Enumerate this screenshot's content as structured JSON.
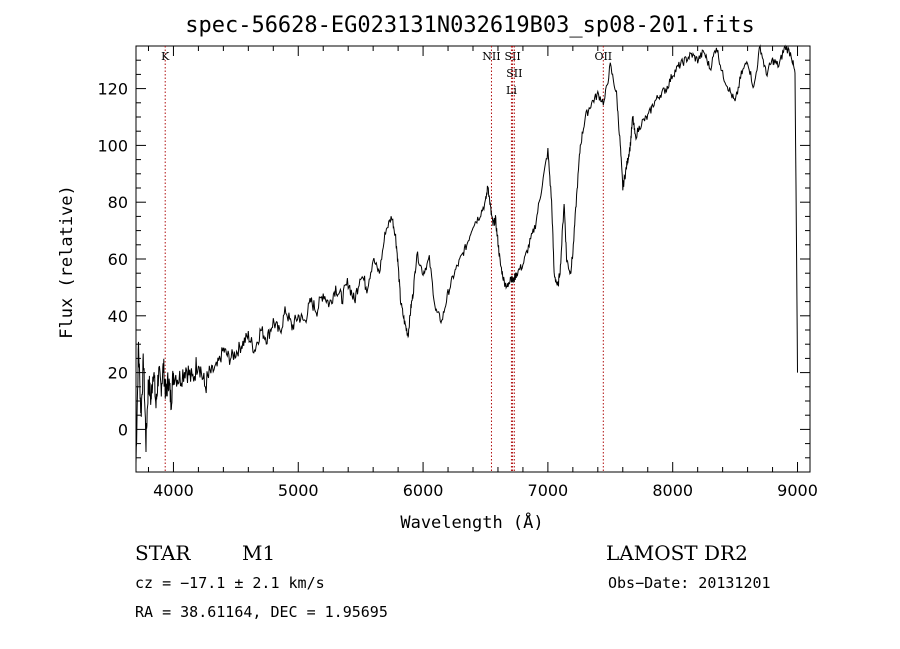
{
  "chart_data": {
    "type": "line",
    "title": "spec-56628-EG023131N032619B03_sp08-201.fits",
    "xlabel": "Wavelength (Å)",
    "ylabel": "Flux (relative)",
    "xlim": [
      3700,
      9100
    ],
    "ylim": [
      -15,
      135
    ],
    "xticks": [
      4000,
      5000,
      6000,
      7000,
      8000,
      9000
    ],
    "yticks": [
      0,
      20,
      40,
      60,
      80,
      100,
      120
    ],
    "grid": false,
    "series": [
      {
        "name": "spectrum",
        "x": [
          3700,
          3720,
          3740,
          3760,
          3780,
          3800,
          3820,
          3840,
          3860,
          3880,
          3900,
          3920,
          3940,
          3960,
          3980,
          4000,
          4050,
          4100,
          4150,
          4200,
          4250,
          4300,
          4350,
          4400,
          4450,
          4500,
          4550,
          4600,
          4650,
          4700,
          4750,
          4800,
          4850,
          4900,
          4950,
          5000,
          5050,
          5100,
          5150,
          5200,
          5250,
          5300,
          5350,
          5400,
          5450,
          5500,
          5550,
          5600,
          5650,
          5700,
          5750,
          5780,
          5800,
          5820,
          5850,
          5880,
          5900,
          5920,
          5950,
          6000,
          6050,
          6100,
          6150,
          6200,
          6250,
          6300,
          6350,
          6400,
          6450,
          6500,
          6520,
          6540,
          6560,
          6580,
          6600,
          6620,
          6650,
          6680,
          6700,
          6720,
          6750,
          6800,
          6850,
          6900,
          6950,
          7000,
          7030,
          7050,
          7080,
          7100,
          7130,
          7150,
          7180,
          7200,
          7230,
          7260,
          7300,
          7350,
          7400,
          7450,
          7500,
          7550,
          7580,
          7600,
          7620,
          7640,
          7660,
          7680,
          7700,
          7750,
          7800,
          7850,
          7900,
          7950,
          8000,
          8050,
          8100,
          8150,
          8200,
          8250,
          8300,
          8350,
          8400,
          8450,
          8500,
          8550,
          8600,
          8650,
          8700,
          8750,
          8800,
          8850,
          8900,
          8950,
          8980,
          9000
        ],
        "values": [
          -12,
          30,
          5,
          25,
          -5,
          18,
          10,
          22,
          8,
          20,
          15,
          22,
          12,
          18,
          10,
          20,
          18,
          22,
          17,
          25,
          15,
          20,
          22,
          28,
          25,
          27,
          30,
          33,
          28,
          35,
          32,
          38,
          34,
          42,
          36,
          40,
          38,
          45,
          42,
          48,
          44,
          50,
          46,
          52,
          45,
          55,
          50,
          60,
          55,
          70,
          75,
          68,
          58,
          45,
          38,
          33,
          42,
          48,
          62,
          55,
          60,
          42,
          38,
          48,
          55,
          60,
          65,
          72,
          75,
          80,
          86,
          78,
          72,
          74,
          66,
          58,
          52,
          50,
          54,
          52,
          55,
          58,
          65,
          72,
          85,
          98,
          80,
          55,
          50,
          57,
          80,
          60,
          55,
          62,
          82,
          100,
          110,
          115,
          118,
          115,
          128,
          118,
          100,
          85,
          90,
          95,
          100,
          110,
          103,
          108,
          110,
          115,
          118,
          120,
          125,
          128,
          130,
          132,
          130,
          133,
          127,
          135,
          125,
          120,
          115,
          125,
          130,
          120,
          135,
          125,
          130,
          128,
          135,
          132,
          125,
          20
        ]
      }
    ],
    "annotations": [
      {
        "label": "K",
        "x": 3934
      },
      {
        "label": "NII",
        "x": 6548
      },
      {
        "label": "SII",
        "x": 6717
      },
      {
        "label": "SII",
        "x": 6731
      },
      {
        "label": "Li",
        "x": 6708
      },
      {
        "label": "OII",
        "x": 7444
      }
    ]
  },
  "info": {
    "object_class": "STAR",
    "subclass": "M1",
    "survey": "LAMOST DR2",
    "redshift_line": "cz = −17.1 ± 2.1 km/s",
    "obs_date": "Obs−Date: 20131201",
    "coords_line": "RA =  38.61164, DEC =    1.95695"
  },
  "colors": {
    "line": "#000000",
    "annotation_line": "#b01010",
    "background": "#ffffff"
  }
}
